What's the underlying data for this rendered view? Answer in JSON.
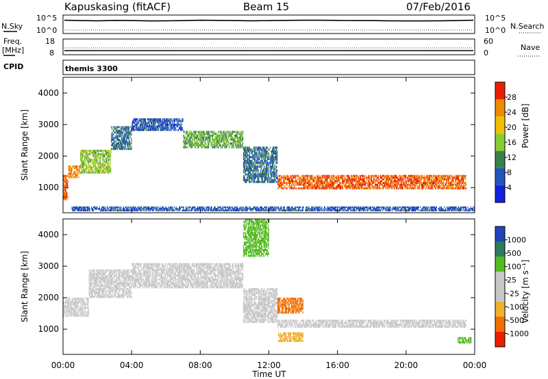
{
  "header": {
    "title": "Kapuskasing (fitACF)",
    "beam": "Beam 15",
    "date": "07/Feb/2016"
  },
  "panels": {
    "noise": {
      "left_label": "N.Sky",
      "right_label": "N.Search",
      "tick_top": "10^5",
      "tick_bottom": "10^0",
      "sky_noise_level": [
        0.72,
        0.7,
        0.69,
        0.71,
        0.7,
        0.68,
        0.69,
        0.7,
        0.72,
        0.71,
        0.7,
        0.69,
        0.7,
        0.71,
        0.72,
        0.72,
        0.71,
        0.7,
        0.7,
        0.69,
        0.68,
        0.68,
        0.69,
        0.7,
        0.72
      ]
    },
    "freq": {
      "left_label": "Freq.",
      "unit_label": "[MHz]",
      "tick_top": "18",
      "tick_bottom": "8",
      "right_label": "Nave",
      "right_tick_top": "60",
      "right_tick_bottom": "0"
    },
    "cpid": {
      "label": "CPID",
      "program": "themis 3300"
    },
    "power": {
      "colorbar_label": "Power [dB]",
      "ticks": [
        "4",
        "8",
        "12",
        "16",
        "20",
        "24",
        "28"
      ],
      "colors": [
        "#1122dd",
        "#2255bb",
        "#3b7f4f",
        "#88cc33",
        "#f0c000",
        "#f08a00",
        "#e82000"
      ]
    },
    "velocity": {
      "colorbar_label": "Velocity [m s⁻¹]",
      "ticks": [
        "-1000",
        "-500",
        "-100",
        "-25",
        "25",
        "100",
        "500",
        "1000"
      ],
      "colors": [
        "#e82000",
        "#f07000",
        "#f0b030",
        "#c8c8c8",
        "#c8c8c8",
        "#55bb22",
        "#2f7a5a",
        "#2244bb"
      ],
      "ground_scatter_color": "#c8c8c8"
    }
  },
  "axes": {
    "y_label": "Slant Range [km]",
    "x_label": "Time UT",
    "y_ticks": [
      "1000",
      "2000",
      "3000",
      "4000"
    ],
    "x_ticks": [
      "00:00",
      "04:00",
      "08:00",
      "12:00",
      "16:00",
      "20:00",
      "00:00"
    ]
  },
  "chart_data": [
    {
      "type": "heatmap",
      "title": "Power",
      "xlabel": "Time UT",
      "ylabel": "Slant Range [km]",
      "xlim_hours": [
        0,
        24
      ],
      "ylim": [
        200,
        4500
      ],
      "colorbar": "Power [dB]",
      "clim": [
        0,
        30
      ],
      "scatter_bands": [
        {
          "t0": 0.0,
          "t1": 0.3,
          "r0": 600,
          "r1": 1400,
          "value": 26
        },
        {
          "t0": 0.3,
          "t1": 1.0,
          "r0": 1300,
          "r1": 1700,
          "value": 24
        },
        {
          "t0": 1.0,
          "t1": 2.8,
          "r0": 1450,
          "r1": 2200,
          "value": 16
        },
        {
          "t0": 2.8,
          "t1": 4.0,
          "r0": 2200,
          "r1": 2950,
          "value": 10
        },
        {
          "t0": 4.0,
          "t1": 7.0,
          "r0": 2800,
          "r1": 3200,
          "value": 8
        },
        {
          "t0": 7.0,
          "t1": 10.5,
          "r0": 2250,
          "r1": 2800,
          "value": 14
        },
        {
          "t0": 10.5,
          "t1": 12.5,
          "r0": 1150,
          "r1": 2300,
          "value": 10
        },
        {
          "t0": 12.5,
          "t1": 23.5,
          "r0": 950,
          "r1": 1400,
          "value": 26
        },
        {
          "t0": 0.5,
          "t1": 24.0,
          "r0": 250,
          "r1": 400,
          "value": 8
        }
      ]
    },
    {
      "type": "heatmap",
      "title": "Velocity",
      "xlabel": "Time UT",
      "ylabel": "Slant Range [km]",
      "xlim_hours": [
        0,
        24
      ],
      "ylim": [
        200,
        4500
      ],
      "colorbar": "Velocity [m s⁻¹]",
      "clim": [
        -1000,
        1000
      ],
      "scatter_bands": [
        {
          "t0": 0.0,
          "t1": 1.5,
          "r0": 1400,
          "r1": 2000,
          "value": 0
        },
        {
          "t0": 1.5,
          "t1": 4.0,
          "r0": 2000,
          "r1": 2900,
          "value": 0
        },
        {
          "t0": 4.0,
          "t1": 10.5,
          "r0": 2300,
          "r1": 3100,
          "value": 0
        },
        {
          "t0": 10.5,
          "t1": 12.5,
          "r0": 1200,
          "r1": 2300,
          "value": 0
        },
        {
          "t0": 12.5,
          "t1": 23.5,
          "r0": 1050,
          "r1": 1300,
          "value": 0
        },
        {
          "t0": 12.5,
          "t1": 14.0,
          "r0": 1500,
          "r1": 2000,
          "value": -400
        },
        {
          "t0": 12.5,
          "t1": 14.0,
          "r0": 600,
          "r1": 900,
          "value": -80
        },
        {
          "t0": 10.5,
          "t1": 12.0,
          "r0": 3300,
          "r1": 4500,
          "value": 150
        },
        {
          "t0": 23.0,
          "t1": 23.8,
          "r0": 550,
          "r1": 750,
          "value": 200
        }
      ]
    }
  ]
}
